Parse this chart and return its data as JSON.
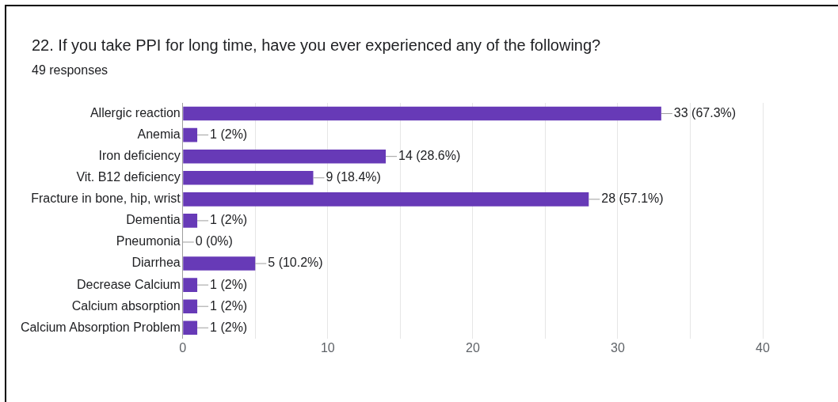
{
  "chart_data": {
    "type": "bar",
    "orientation": "horizontal",
    "title": "22. If you take PPI for long time, have you ever experienced any of the following?",
    "subtitle": "49 responses",
    "categories": [
      "Allergic reaction",
      "Anemia",
      "Iron deficiency",
      "Vit. B12 deficiency",
      "Fracture in bone, hip, wrist",
      "Dementia",
      "Pneumonia",
      "Diarrhea",
      "Decrease Calcium",
      "Calcium absorption",
      "Calcium Absorption Problem"
    ],
    "values": [
      33,
      1,
      14,
      9,
      28,
      1,
      0,
      5,
      1,
      1,
      1
    ],
    "value_labels": [
      "33 (67.3%)",
      "1 (2%)",
      "14 (28.6%)",
      "9 (18.4%)",
      "28 (57.1%)",
      "1 (2%)",
      "0 (0%)",
      "5 (10.2%)",
      "1 (2%)",
      "1 (2%)",
      "1 (2%)"
    ],
    "color": "#673ab7",
    "xlim": [
      0,
      40
    ],
    "xticks": [
      0,
      {
        "value": 5,
        "label": null
      },
      10,
      {
        "value": 15,
        "label": null
      },
      20,
      {
        "value": 25,
        "label": null
      },
      30,
      {
        "value": 35,
        "label": null
      },
      40
    ],
    "grid": "x",
    "legend": false
  }
}
